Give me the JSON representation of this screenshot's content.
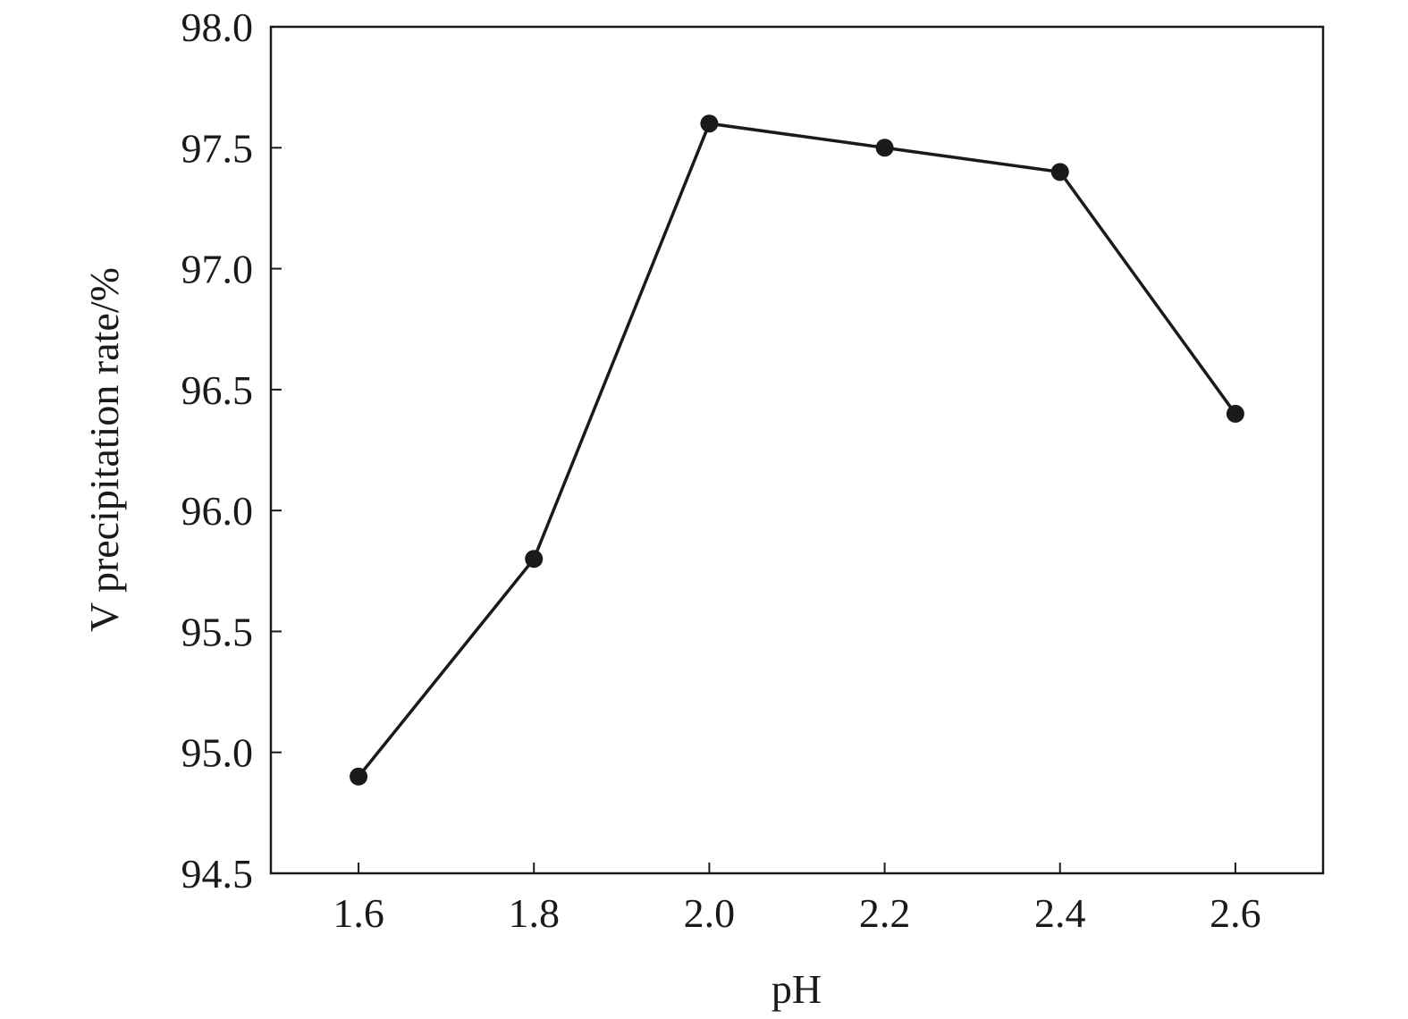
{
  "chart_data": {
    "type": "line",
    "title": "",
    "xlabel": "pH",
    "ylabel": "V precipitation rate/%",
    "x": [
      1.6,
      1.8,
      2.0,
      2.2,
      2.4,
      2.6
    ],
    "series": [
      {
        "name": "V precipitation rate",
        "values": [
          94.9,
          95.8,
          97.6,
          97.5,
          97.4,
          96.4
        ],
        "color": "#1a1a1a",
        "marker": "circle"
      }
    ],
    "xlim": [
      1.5,
      2.7
    ],
    "ylim": [
      94.5,
      98.0
    ],
    "xticks": [
      1.6,
      1.8,
      2.0,
      2.2,
      2.4,
      2.6
    ],
    "xtick_labels": [
      "1.6",
      "1.8",
      "2.0",
      "2.2",
      "2.4",
      "2.6"
    ],
    "yticks": [
      94.5,
      95.0,
      95.5,
      96.0,
      96.5,
      97.0,
      97.5,
      98.0
    ],
    "ytick_labels": [
      "94.5",
      "95.0",
      "95.5",
      "96.0",
      "96.5",
      "97.0",
      "97.5",
      "98.0"
    ],
    "grid": false,
    "legend": "none"
  }
}
